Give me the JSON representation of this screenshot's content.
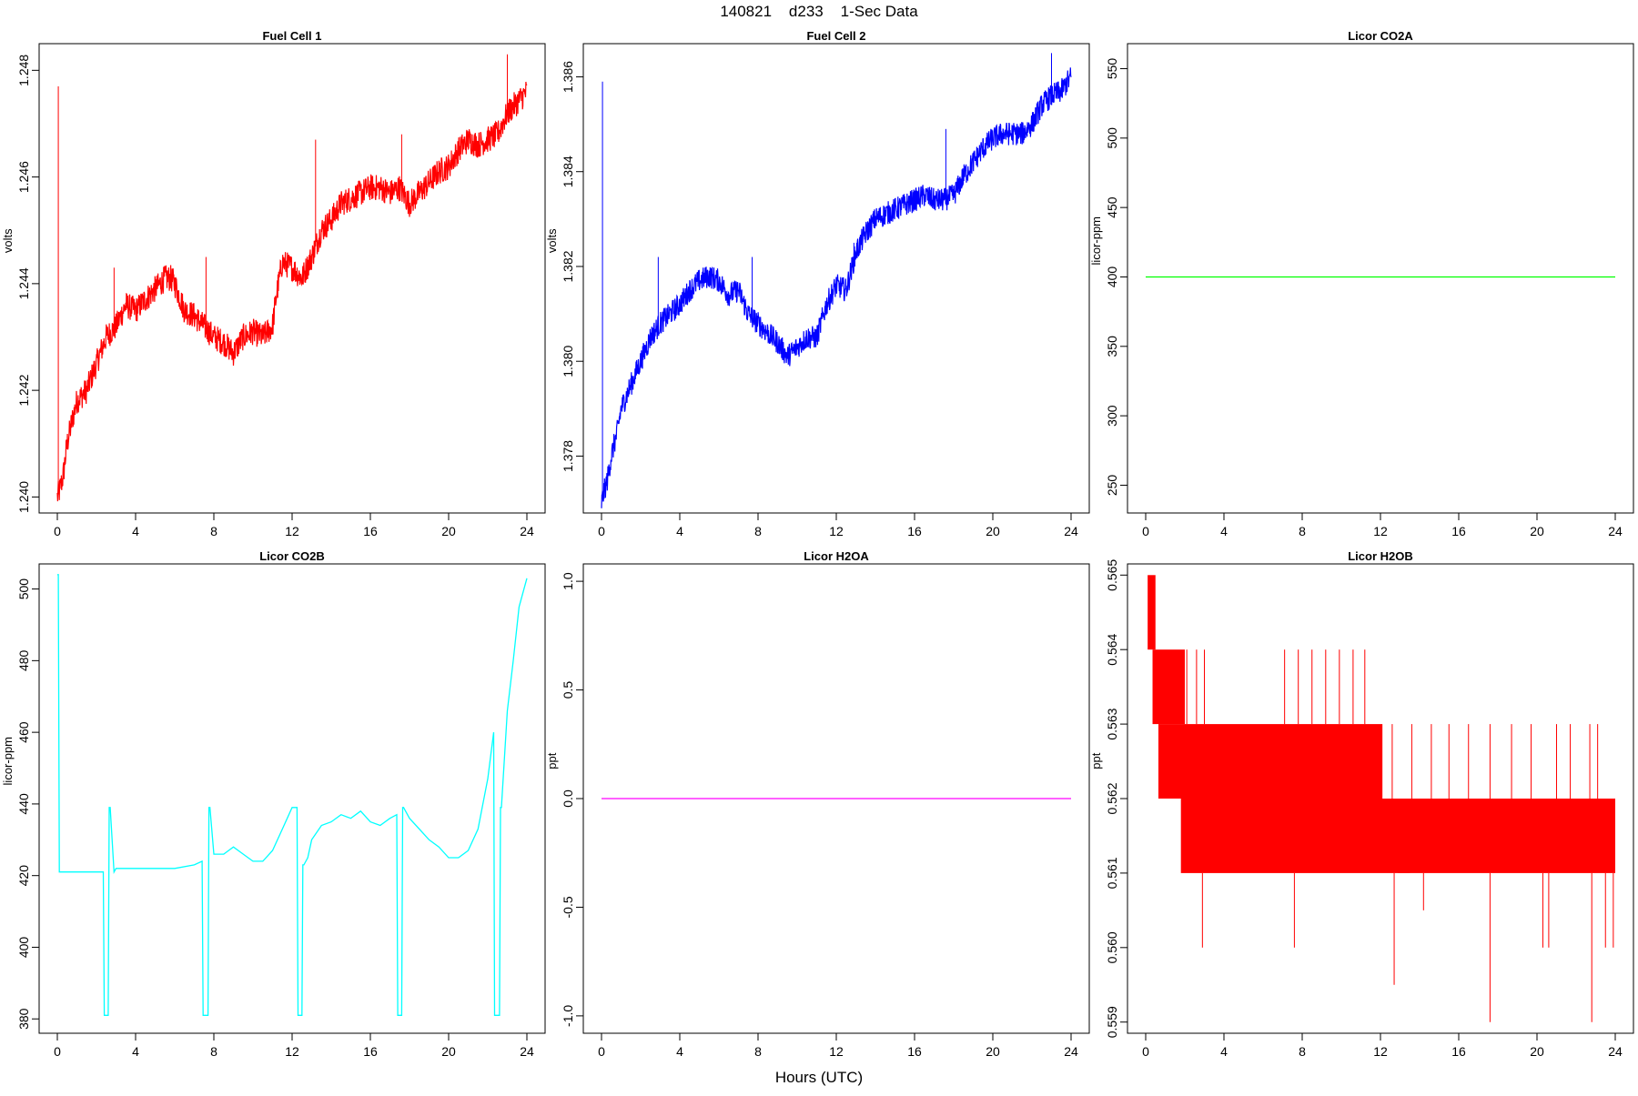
{
  "figure": {
    "title": "140821    d233    1-Sec Data",
    "xlabel": "Hours (UTC)"
  },
  "chart_data": [
    {
      "type": "line",
      "title": "Fuel Cell 1",
      "xlabel": "",
      "ylabel": "volts",
      "xlim": [
        0,
        24
      ],
      "ylim": [
        1.2397,
        1.2485
      ],
      "xticks": [
        0,
        4,
        8,
        12,
        16,
        20,
        24
      ],
      "yticks": [
        1.24,
        1.242,
        1.244,
        1.246,
        1.248
      ],
      "ytick_labels": [
        "1.240",
        "1.242",
        "1.244",
        "1.246",
        "1.248"
      ],
      "series": [
        {
          "color": "#ff0000",
          "band": 0.00025,
          "x": [
            0,
            0.1,
            0.3,
            0.5,
            0.8,
            1.0,
            1.5,
            2.0,
            2.5,
            3.0,
            3.5,
            4.0,
            4.5,
            5.0,
            5.5,
            5.8,
            6.0,
            6.5,
            7.0,
            7.5,
            8.0,
            8.5,
            9.0,
            9.5,
            10.0,
            10.5,
            11.0,
            11.2,
            11.5,
            12.0,
            12.5,
            13.0,
            13.5,
            14.0,
            14.5,
            15.0,
            15.5,
            16.0,
            16.5,
            17.0,
            17.5,
            18.0,
            18.5,
            19.0,
            19.5,
            20.0,
            20.5,
            21.0,
            21.5,
            22.0,
            22.5,
            23.0,
            23.5,
            24.0
          ],
          "y": [
            1.24,
            1.2401,
            1.2404,
            1.241,
            1.2415,
            1.2418,
            1.242,
            1.2425,
            1.243,
            1.2432,
            1.2436,
            1.2435,
            1.2437,
            1.2439,
            1.2441,
            1.2441,
            1.244,
            1.2435,
            1.2434,
            1.2432,
            1.243,
            1.2429,
            1.2427,
            1.243,
            1.2431,
            1.243,
            1.2432,
            1.2438,
            1.2444,
            1.2443,
            1.2441,
            1.2445,
            1.245,
            1.2452,
            1.2455,
            1.2456,
            1.2457,
            1.2458,
            1.2458,
            1.2457,
            1.2458,
            1.2455,
            1.2457,
            1.2459,
            1.2461,
            1.2462,
            1.2465,
            1.2467,
            1.2466,
            1.2467,
            1.2468,
            1.2472,
            1.2474,
            1.2476
          ]
        }
      ],
      "spikes": [
        [
          0.05,
          1.2477
        ],
        [
          2.9,
          1.2443
        ],
        [
          7.6,
          1.2445
        ],
        [
          13.2,
          1.2467
        ],
        [
          17.6,
          1.2468
        ],
        [
          23.0,
          1.2483
        ]
      ]
    },
    {
      "type": "line",
      "title": "Fuel Cell 2",
      "xlabel": "",
      "ylabel": "volts",
      "xlim": [
        0,
        24
      ],
      "ylim": [
        1.3768,
        1.3867
      ],
      "xticks": [
        0,
        4,
        8,
        12,
        16,
        20,
        24
      ],
      "yticks": [
        1.378,
        1.38,
        1.382,
        1.384,
        1.386
      ],
      "ytick_labels": [
        "1.378",
        "1.380",
        "1.382",
        "1.384",
        "1.386"
      ],
      "series": [
        {
          "color": "#0000ff",
          "band": 0.00025,
          "x": [
            0,
            0.1,
            0.3,
            0.5,
            0.8,
            1.0,
            1.5,
            2.0,
            2.5,
            3.0,
            3.5,
            4.0,
            4.5,
            5.0,
            5.5,
            6.0,
            6.5,
            7.0,
            7.5,
            8.0,
            8.5,
            9.0,
            9.5,
            10.0,
            10.5,
            11.0,
            11.5,
            12.0,
            12.5,
            13.0,
            13.5,
            14.0,
            14.5,
            15.0,
            15.5,
            16.0,
            16.5,
            17.0,
            17.5,
            18.0,
            18.5,
            19.0,
            19.5,
            20.0,
            20.5,
            21.0,
            21.5,
            22.0,
            22.5,
            23.0,
            23.5,
            24.0
          ],
          "y": [
            1.377,
            1.3772,
            1.3775,
            1.378,
            1.3785,
            1.379,
            1.3795,
            1.38,
            1.3805,
            1.3808,
            1.381,
            1.3812,
            1.3815,
            1.3817,
            1.3818,
            1.3817,
            1.3814,
            1.3815,
            1.381,
            1.3808,
            1.3806,
            1.3804,
            1.3801,
            1.3803,
            1.3805,
            1.3805,
            1.3812,
            1.3816,
            1.3815,
            1.3823,
            1.3827,
            1.383,
            1.3831,
            1.3832,
            1.3833,
            1.3834,
            1.3835,
            1.3834,
            1.3834,
            1.3835,
            1.3839,
            1.3842,
            1.3845,
            1.3847,
            1.3848,
            1.3848,
            1.3848,
            1.385,
            1.3854,
            1.3856,
            1.3857,
            1.386
          ]
        }
      ],
      "spikes": [
        [
          0.05,
          1.3859
        ],
        [
          2.9,
          1.3822
        ],
        [
          7.7,
          1.3822
        ],
        [
          12.9,
          1.3825
        ],
        [
          17.6,
          1.3849
        ],
        [
          23.0,
          1.3865
        ]
      ]
    },
    {
      "type": "line",
      "title": "Licor CO2A",
      "xlabel": "",
      "ylabel": "licor-ppm",
      "xlim": [
        0,
        24
      ],
      "ylim": [
        230,
        568
      ],
      "xticks": [
        0,
        4,
        8,
        12,
        16,
        20,
        24
      ],
      "yticks": [
        250,
        300,
        350,
        400,
        450,
        500,
        550
      ],
      "ytick_labels": [
        "250",
        "300",
        "350",
        "400",
        "450",
        "500",
        "550"
      ],
      "series": [
        {
          "color": "#00ff00",
          "x": [
            0,
            24
          ],
          "y": [
            400,
            400
          ]
        }
      ]
    },
    {
      "type": "line",
      "title": "Licor CO2B",
      "xlabel": "",
      "ylabel": "licor-ppm",
      "xlim": [
        0,
        24
      ],
      "ylim": [
        376,
        507
      ],
      "xticks": [
        0,
        4,
        8,
        12,
        16,
        20,
        24
      ],
      "yticks": [
        380,
        400,
        420,
        440,
        460,
        480,
        500
      ],
      "ytick_labels": [
        "380",
        "400",
        "420",
        "440",
        "460",
        "480",
        "500"
      ],
      "series": [
        {
          "color": "#00ffff",
          "x": [
            0,
            0.05,
            0.1,
            1.0,
            2.0,
            2.35,
            2.4,
            2.45,
            2.6,
            2.65,
            2.7,
            2.9,
            3.0,
            4.0,
            5.0,
            6.0,
            7.0,
            7.4,
            7.45,
            7.5,
            7.7,
            7.75,
            7.8,
            8.0,
            8.5,
            9.0,
            9.5,
            10.0,
            10.5,
            11.0,
            11.5,
            12.0,
            12.25,
            12.3,
            12.35,
            12.5,
            12.55,
            12.6,
            12.8,
            13.0,
            13.5,
            14.0,
            14.5,
            15.0,
            15.5,
            16.0,
            16.5,
            17.0,
            17.35,
            17.4,
            17.45,
            17.6,
            17.65,
            17.7,
            18.0,
            18.5,
            19.0,
            19.5,
            20.0,
            20.5,
            21.0,
            21.5,
            22.0,
            22.3,
            22.35,
            22.4,
            22.6,
            22.65,
            22.7,
            23.0,
            23.3,
            23.6,
            24.0
          ],
          "y": [
            504,
            504,
            421,
            421,
            421,
            421,
            381,
            381,
            381,
            439,
            439,
            421,
            422,
            422,
            422,
            422,
            423,
            424,
            381,
            381,
            381,
            439,
            439,
            426,
            426,
            428,
            426,
            424,
            424,
            427,
            433,
            439,
            439,
            381,
            381,
            381,
            423,
            423,
            425,
            430,
            434,
            435,
            437,
            436,
            438,
            435,
            434,
            436,
            437,
            381,
            381,
            381,
            439,
            439,
            436,
            433,
            430,
            428,
            425,
            425,
            427,
            433,
            447,
            460,
            381,
            381,
            381,
            439,
            439,
            466,
            480,
            495,
            503
          ]
        }
      ]
    },
    {
      "type": "line",
      "title": "Licor H2OA",
      "xlabel": "",
      "ylabel": "ppt",
      "xlim": [
        0,
        24
      ],
      "ylim": [
        -1.08,
        1.08
      ],
      "xticks": [
        0,
        4,
        8,
        12,
        16,
        20,
        24
      ],
      "yticks": [
        -1.0,
        -0.5,
        0.0,
        0.5,
        1.0
      ],
      "ytick_labels": [
        "-1.0",
        "-0.5",
        "0.0",
        "0.5",
        "1.0"
      ],
      "series": [
        {
          "color": "#ff00ff",
          "x": [
            0,
            24
          ],
          "y": [
            0,
            0
          ]
        }
      ]
    },
    {
      "type": "line",
      "title": "Licor H2OB",
      "xlabel": "",
      "ylabel": "ppt",
      "xlim": [
        0,
        24
      ],
      "ylim": [
        0.55885,
        0.56515
      ],
      "xticks": [
        0,
        4,
        8,
        12,
        16,
        20,
        24
      ],
      "yticks": [
        0.559,
        0.56,
        0.561,
        0.562,
        0.563,
        0.564,
        0.565
      ],
      "ytick_labels": [
        "0.559",
        "0.560",
        "0.561",
        "0.562",
        "0.563",
        "0.564",
        "0.565"
      ],
      "series": [
        {
          "color": "#ff0000"
        }
      ],
      "blocks": [
        {
          "x0": 0.1,
          "x1": 0.5,
          "y0": 0.564,
          "y1": 0.565
        },
        {
          "x0": 0.35,
          "x1": 2.0,
          "y0": 0.563,
          "y1": 0.564
        },
        {
          "x0": 0.65,
          "x1": 12.1,
          "y0": 0.562,
          "y1": 0.563
        },
        {
          "x0": 1.8,
          "x1": 13.5,
          "y0": 0.561,
          "y1": 0.562
        },
        {
          "x0": 12.9,
          "x1": 24.0,
          "y0": 0.561,
          "y1": 0.562
        }
      ],
      "spikes_up": [
        [
          2.1,
          0.564
        ],
        [
          2.6,
          0.564
        ],
        [
          3.0,
          0.564
        ],
        [
          7.1,
          0.564
        ],
        [
          7.8,
          0.564
        ],
        [
          8.5,
          0.564
        ],
        [
          9.2,
          0.564
        ],
        [
          9.9,
          0.564
        ],
        [
          10.6,
          0.564
        ],
        [
          11.2,
          0.564
        ],
        [
          12.6,
          0.563
        ],
        [
          13.6,
          0.563
        ],
        [
          14.6,
          0.563
        ],
        [
          15.5,
          0.563
        ],
        [
          16.5,
          0.563
        ],
        [
          17.6,
          0.563
        ],
        [
          18.7,
          0.563
        ],
        [
          19.7,
          0.563
        ],
        [
          21.0,
          0.563
        ],
        [
          21.7,
          0.563
        ],
        [
          22.7,
          0.563
        ],
        [
          23.1,
          0.563
        ]
      ],
      "spikes_down": [
        [
          0.05,
          0.561
        ],
        [
          2.9,
          0.56
        ],
        [
          7.6,
          0.56
        ],
        [
          12.7,
          0.5595
        ],
        [
          14.2,
          0.5605
        ],
        [
          17.6,
          0.559
        ],
        [
          20.3,
          0.56
        ],
        [
          20.6,
          0.56
        ],
        [
          22.8,
          0.559
        ],
        [
          23.5,
          0.56
        ],
        [
          23.9,
          0.56
        ]
      ]
    }
  ]
}
